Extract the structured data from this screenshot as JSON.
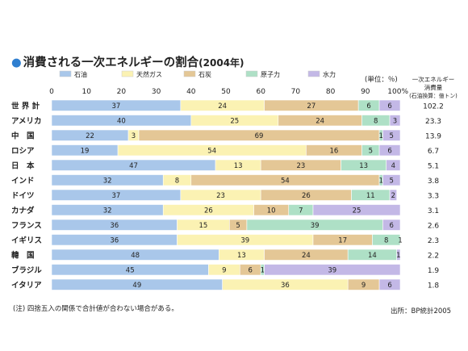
{
  "title": "消費される一次エネルギーの割合",
  "title_year": "(2004年)",
  "unit_label": "(単位：％)",
  "right_header": [
    "一次エネルギー",
    "消費量",
    "(石油換算：億トン)"
  ],
  "footnote": "(注) 四捨五入の関係で合計値が合わない場合がある。",
  "source": "出所：BP統計2005",
  "colors": {
    "oil": "#a9c7ea",
    "gas": "#fbf2b3",
    "coal": "#e4c796",
    "nuclear": "#aee0c6",
    "hydro": "#c3b8e6",
    "divider": "#ffffff"
  },
  "chart_data": {
    "type": "bar",
    "orientation": "horizontal",
    "stacked": true,
    "xlim": [
      0,
      100
    ],
    "x_ticks": [
      0,
      10,
      20,
      30,
      40,
      50,
      60,
      70,
      80,
      90,
      100
    ],
    "x_tick_labels": [
      "0",
      "10",
      "20",
      "30",
      "40",
      "50",
      "60",
      "70",
      "80",
      "90",
      "100%"
    ],
    "legend_position": "top",
    "categories": [
      "世 界 計",
      "アメリカ",
      "中　国",
      "ロシア",
      "日　本",
      "インド",
      "ドイツ",
      "カナダ",
      "フランス",
      "イギリス",
      "韓　国",
      "ブラジル",
      "イタリア"
    ],
    "series": [
      {
        "name": "石油",
        "key": "oil",
        "values": [
          37,
          40,
          22,
          19,
          47,
          32,
          37,
          32,
          36,
          36,
          48,
          45,
          49
        ]
      },
      {
        "name": "天然ガス",
        "key": "gas",
        "values": [
          24,
          25,
          3,
          54,
          13,
          8,
          23,
          26,
          15,
          39,
          13,
          9,
          36
        ]
      },
      {
        "name": "石炭",
        "key": "coal",
        "values": [
          27,
          24,
          69,
          16,
          23,
          54,
          26,
          10,
          5,
          17,
          24,
          6,
          9
        ]
      },
      {
        "name": "原子力",
        "key": "nuclear",
        "values": [
          6,
          8,
          1,
          5,
          13,
          1,
          11,
          7,
          39,
          8,
          14,
          1,
          0
        ]
      },
      {
        "name": "水力",
        "key": "hydro",
        "values": [
          6,
          3,
          5,
          6,
          4,
          5,
          2,
          25,
          6,
          1,
          1,
          39,
          6
        ]
      }
    ],
    "consumption": [
      "102.2",
      "23.3",
      "13.9",
      "6.7",
      "5.1",
      "3.8",
      "3.3",
      "3.1",
      "2.6",
      "2.3",
      "2.2",
      "1.9",
      "1.8"
    ]
  }
}
